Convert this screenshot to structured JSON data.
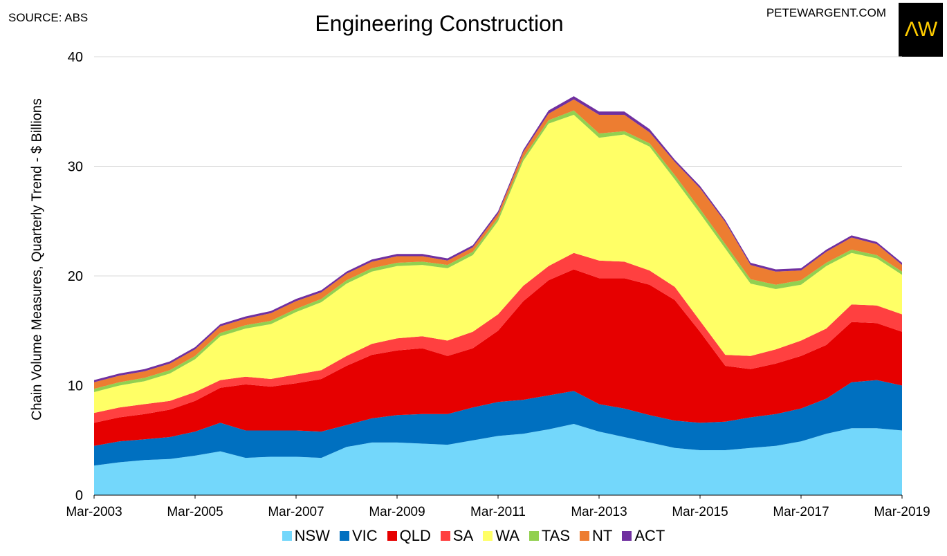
{
  "source": "SOURCE: ABS",
  "brand": "PETEWARGENT.COM",
  "logo": "ΛW",
  "chart_data": {
    "type": "area",
    "stacked": true,
    "title": "Engineering Construction",
    "ylabel": "Chain Volume Measures, Quarterly Trend - $ Billions",
    "xlabel": "",
    "ylim": [
      0,
      40
    ],
    "yticks": [
      0,
      10,
      20,
      30,
      40
    ],
    "grid": true,
    "legend_position": "bottom",
    "x_tick_labels": [
      "Mar-2003",
      "Mar-2005",
      "Mar-2007",
      "Mar-2009",
      "Mar-2011",
      "Mar-2013",
      "Mar-2015",
      "Mar-2017",
      "Mar-2019"
    ],
    "x": [
      2003.0,
      2003.5,
      2004.0,
      2004.5,
      2005.0,
      2005.5,
      2006.0,
      2006.5,
      2007.0,
      2007.5,
      2008.0,
      2008.5,
      2009.0,
      2009.5,
      2010.0,
      2010.5,
      2011.0,
      2011.5,
      2012.0,
      2012.5,
      2013.0,
      2013.5,
      2014.0,
      2014.5,
      2015.0,
      2015.5,
      2016.0,
      2016.5,
      2017.0,
      2017.5,
      2018.0,
      2018.5,
      2019.0
    ],
    "series": [
      {
        "name": "NSW",
        "color": "#73d7fb",
        "values": [
          2.7,
          3.0,
          3.2,
          3.3,
          3.6,
          4.0,
          3.4,
          3.5,
          3.5,
          3.4,
          4.4,
          4.8,
          4.8,
          4.7,
          4.6,
          5.0,
          5.4,
          5.6,
          6.0,
          6.5,
          5.8,
          5.3,
          4.8,
          4.3,
          4.1,
          4.1,
          4.3,
          4.5,
          4.9,
          5.6,
          6.1,
          6.1,
          5.9
        ]
      },
      {
        "name": "VIC",
        "color": "#0070c0",
        "values": [
          1.8,
          1.9,
          1.9,
          2.0,
          2.2,
          2.6,
          2.5,
          2.4,
          2.4,
          2.4,
          2.0,
          2.2,
          2.5,
          2.7,
          2.8,
          3.0,
          3.1,
          3.1,
          3.1,
          3.0,
          2.5,
          2.6,
          2.5,
          2.5,
          2.5,
          2.6,
          2.8,
          2.9,
          3.0,
          3.2,
          4.2,
          4.4,
          4.1
        ]
      },
      {
        "name": "QLD",
        "color": "#e60000",
        "values": [
          2.1,
          2.2,
          2.3,
          2.5,
          2.8,
          3.2,
          4.2,
          4.0,
          4.3,
          4.8,
          5.4,
          5.8,
          5.9,
          6.0,
          5.3,
          5.4,
          6.5,
          9.0,
          10.5,
          11.1,
          11.5,
          11.9,
          11.9,
          11.0,
          8.3,
          5.1,
          4.4,
          4.6,
          4.8,
          4.9,
          5.5,
          5.2,
          4.9
        ]
      },
      {
        "name": "SA",
        "color": "#ff4040",
        "values": [
          0.9,
          0.9,
          0.9,
          0.8,
          0.8,
          0.7,
          0.7,
          0.7,
          0.8,
          0.8,
          0.9,
          1.0,
          1.1,
          1.1,
          1.4,
          1.5,
          1.5,
          1.4,
          1.3,
          1.5,
          1.6,
          1.5,
          1.3,
          1.2,
          1.0,
          1.0,
          1.2,
          1.3,
          1.4,
          1.5,
          1.6,
          1.6,
          1.6
        ]
      },
      {
        "name": "WA",
        "color": "#ffff66",
        "values": [
          1.9,
          2.0,
          2.1,
          2.5,
          3.0,
          4.0,
          4.4,
          5.0,
          5.7,
          6.2,
          6.6,
          6.6,
          6.6,
          6.5,
          6.6,
          7.0,
          8.5,
          11.4,
          13.0,
          12.6,
          11.2,
          11.6,
          11.3,
          9.8,
          9.8,
          9.7,
          6.6,
          5.5,
          5.1,
          5.7,
          4.7,
          4.3,
          3.6
        ]
      },
      {
        "name": "TAS",
        "color": "#92d050",
        "values": [
          0.3,
          0.3,
          0.3,
          0.3,
          0.3,
          0.3,
          0.3,
          0.3,
          0.3,
          0.3,
          0.3,
          0.3,
          0.3,
          0.3,
          0.3,
          0.3,
          0.3,
          0.3,
          0.3,
          0.4,
          0.4,
          0.3,
          0.3,
          0.4,
          0.4,
          0.4,
          0.4,
          0.4,
          0.4,
          0.3,
          0.3,
          0.3,
          0.3
        ]
      },
      {
        "name": "NT",
        "color": "#ed7d31",
        "values": [
          0.6,
          0.6,
          0.6,
          0.6,
          0.6,
          0.6,
          0.6,
          0.7,
          0.7,
          0.6,
          0.6,
          0.6,
          0.6,
          0.5,
          0.4,
          0.4,
          0.4,
          0.5,
          0.6,
          1.0,
          1.7,
          1.5,
          1.0,
          1.2,
          1.9,
          2.0,
          1.3,
          1.2,
          0.9,
          1.0,
          1.1,
          1.0,
          0.6
        ]
      },
      {
        "name": "ACT",
        "color": "#7030a0",
        "values": [
          0.2,
          0.2,
          0.2,
          0.2,
          0.2,
          0.2,
          0.2,
          0.2,
          0.2,
          0.2,
          0.2,
          0.2,
          0.2,
          0.2,
          0.2,
          0.2,
          0.2,
          0.2,
          0.3,
          0.3,
          0.3,
          0.3,
          0.3,
          0.2,
          0.2,
          0.2,
          0.2,
          0.2,
          0.2,
          0.2,
          0.2,
          0.2,
          0.2
        ]
      }
    ]
  }
}
